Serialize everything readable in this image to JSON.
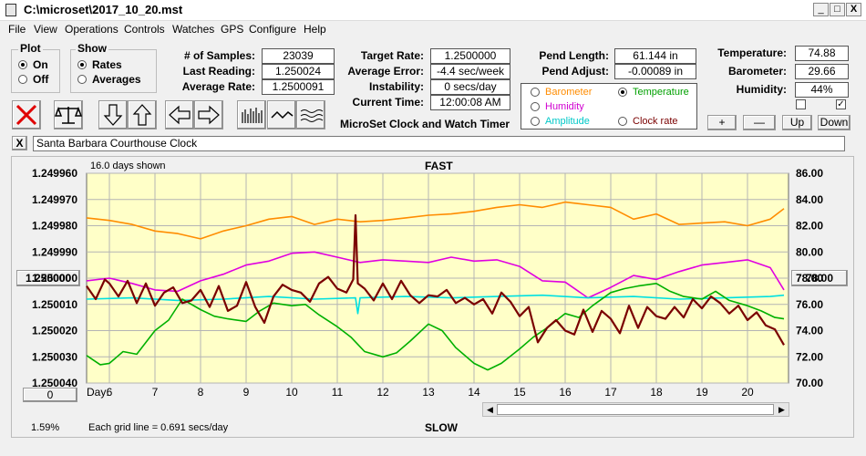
{
  "window": {
    "title": "C:\\microset\\2017_10_20.mst",
    "min_btn": "_",
    "max_btn": "□",
    "close_btn": "X"
  },
  "menu": [
    "File",
    "View",
    "Operations",
    "Controls",
    "Watches",
    "GPS",
    "Configure",
    "Help"
  ],
  "plot_group": {
    "title": "Plot",
    "options": [
      "On",
      "Off"
    ],
    "selected": "On"
  },
  "show_group": {
    "title": "Show",
    "options": [
      "Rates",
      "Averages"
    ],
    "selected": "Rates"
  },
  "stats": {
    "samples_label": "# of Samples:",
    "samples": "23039",
    "last_reading_label": "Last Reading:",
    "last_reading": "1.250024",
    "average_rate_label": "Average Rate:",
    "average_rate": "1.2500091",
    "target_rate_label": "Target Rate:",
    "target_rate": "1.2500000",
    "average_error_label": "Average Error:",
    "average_error": "-4.4 sec/week",
    "instability_label": "Instability:",
    "instability": "0 secs/day",
    "current_time_label": "Current Time:",
    "current_time": "12:00:08 AM",
    "pend_length_label": "Pend Length:",
    "pend_length": "61.144 in",
    "pend_adjust_label": "Pend Adjust:",
    "pend_adjust": "-0.00089 in",
    "temperature_label": "Temperature:",
    "temperature": "74.88",
    "barometer_label": "Barometer:",
    "barometer": "29.66",
    "humidity_label": "Humidity:",
    "humidity": "44%"
  },
  "app_caption": "MicroSet Clock and Watch Timer",
  "sensor_options": {
    "barometer": "Barometer",
    "temperature": "Temperature",
    "humidity": "Humidity",
    "amplitude": "Amplitude",
    "clock_rate": "Clock rate",
    "selected": "Temperature"
  },
  "scale_buttons": {
    "plus": "+",
    "minus": "—",
    "up": "Up",
    "down": "Down"
  },
  "checkboxes": {
    "left_checked": false,
    "right_checked": true
  },
  "clock_name": {
    "close": "X",
    "value": "Santa Barbara Courthouse Clock"
  },
  "chart": {
    "days_shown": "16.0 days shown",
    "top_label": "FAST",
    "bottom_label": "SLOW",
    "grid_note": "Each grid line = 0.691 secs/day",
    "left_center_btn": "1.250000",
    "right_center_btn": "78.00",
    "left_bottom_btn": "0",
    "percent": "1.59%",
    "day_label": "Day:"
  },
  "colors": {
    "barometer": "#ff8c00",
    "humidity": "#e000e0",
    "amplitude": "#00e0e0",
    "temperature": "#00b000",
    "clock_rate": "#7a0000",
    "plot_bg": "#ffffc8",
    "grid": "#b4b4b4"
  },
  "chart_data": {
    "type": "line",
    "x_label": "Day",
    "x_ticks": [
      6,
      7,
      8,
      9,
      10,
      11,
      12,
      13,
      14,
      15,
      16,
      17,
      18,
      19,
      20
    ],
    "xlim": [
      5.5,
      20.9
    ],
    "y_left_ticks": [
      "1.249960",
      "1.249970",
      "1.249980",
      "1.249990",
      "1.250000",
      "1.250010",
      "1.250020",
      "1.250030",
      "1.250040"
    ],
    "y_left_lim": [
      1.24996,
      1.25004
    ],
    "y_left_inverted": true,
    "y_right_ticks": [
      "86.00",
      "84.00",
      "82.00",
      "80.00",
      "78.00",
      "76.00",
      "74.00",
      "72.00",
      "70.00"
    ],
    "y_right_lim": [
      70,
      86
    ],
    "grid": true,
    "series": [
      {
        "name": "Barometer",
        "color": "#ff8c00",
        "x": [
          5.5,
          6.0,
          6.5,
          7.0,
          7.5,
          8.0,
          8.5,
          9.0,
          9.5,
          10.0,
          10.5,
          11.0,
          11.5,
          12.0,
          12.5,
          13.0,
          13.5,
          14.0,
          14.5,
          15.0,
          15.5,
          16.0,
          16.5,
          17.0,
          17.5,
          18.0,
          18.5,
          19.0,
          19.5,
          20.0,
          20.5,
          20.8
        ],
        "y": [
          82.6,
          82.4,
          82.1,
          81.6,
          81.4,
          81.0,
          81.6,
          82.0,
          82.5,
          82.7,
          82.1,
          82.5,
          82.3,
          82.4,
          82.6,
          82.8,
          82.9,
          83.1,
          83.4,
          83.6,
          83.4,
          83.8,
          83.6,
          83.4,
          82.5,
          82.9,
          82.1,
          82.2,
          82.3,
          82.0,
          82.5,
          83.3
        ]
      },
      {
        "name": "Humidity",
        "color": "#e000e0",
        "x": [
          5.5,
          6.0,
          6.5,
          7.0,
          7.5,
          8.0,
          8.5,
          9.0,
          9.5,
          10.0,
          10.5,
          11.0,
          11.5,
          12.0,
          12.5,
          13.0,
          13.5,
          14.0,
          14.5,
          15.0,
          15.5,
          16.0,
          16.5,
          17.0,
          17.5,
          18.0,
          18.5,
          19.0,
          19.5,
          20.0,
          20.5,
          20.8
        ],
        "y": [
          77.8,
          78.0,
          77.6,
          77.1,
          77.0,
          77.8,
          78.3,
          79.0,
          79.3,
          79.9,
          80.0,
          79.6,
          79.2,
          79.4,
          79.3,
          79.2,
          79.6,
          79.3,
          79.4,
          78.9,
          77.8,
          77.7,
          76.5,
          77.3,
          78.2,
          77.9,
          78.5,
          79.0,
          79.2,
          79.4,
          78.8,
          77.1
        ]
      },
      {
        "name": "Amplitude",
        "color": "#00e0e0",
        "x": [
          5.5,
          6.5,
          7.5,
          8.5,
          9.5,
          10.5,
          11.4,
          11.45,
          11.5,
          12.5,
          13.5,
          14.5,
          15.5,
          16.5,
          17.5,
          18.5,
          19.5,
          20.5,
          20.8
        ],
        "y": [
          76.4,
          76.5,
          76.3,
          76.4,
          76.6,
          76.4,
          76.5,
          75.3,
          76.5,
          76.6,
          76.5,
          76.6,
          76.7,
          76.5,
          76.6,
          76.4,
          76.5,
          76.6,
          76.7
        ]
      },
      {
        "name": "Temperature",
        "color": "#00b000",
        "x": [
          5.5,
          5.8,
          6.0,
          6.3,
          6.6,
          7.0,
          7.3,
          7.6,
          8.0,
          8.3,
          8.6,
          9.0,
          9.3,
          9.6,
          10.0,
          10.3,
          10.6,
          11.0,
          11.3,
          11.6,
          12.0,
          12.3,
          12.6,
          13.0,
          13.3,
          13.6,
          14.0,
          14.3,
          14.6,
          15.0,
          15.3,
          15.6,
          16.0,
          16.3,
          16.6,
          17.0,
          17.3,
          17.6,
          18.0,
          18.3,
          18.6,
          19.0,
          19.3,
          19.6,
          20.0,
          20.3,
          20.6,
          20.8
        ],
        "y": [
          72.1,
          71.4,
          71.5,
          72.4,
          72.2,
          74.0,
          74.8,
          76.4,
          75.6,
          75.1,
          74.9,
          74.7,
          75.5,
          76.1,
          75.9,
          76.0,
          75.2,
          74.3,
          73.5,
          72.4,
          72.0,
          72.3,
          73.2,
          74.5,
          74.0,
          72.7,
          71.5,
          71.0,
          71.5,
          72.6,
          73.5,
          74.2,
          75.3,
          75.0,
          75.9,
          76.9,
          77.2,
          77.4,
          77.6,
          77.0,
          76.6,
          76.4,
          77.0,
          76.3,
          75.9,
          75.5,
          75.0,
          74.9
        ]
      },
      {
        "name": "Clock rate",
        "color": "#7a0000",
        "x": [
          5.5,
          5.7,
          5.9,
          6.0,
          6.2,
          6.4,
          6.6,
          6.8,
          7.0,
          7.2,
          7.4,
          7.6,
          7.8,
          8.0,
          8.2,
          8.4,
          8.6,
          8.8,
          9.0,
          9.2,
          9.4,
          9.6,
          9.8,
          10.0,
          10.2,
          10.4,
          10.6,
          10.8,
          11.0,
          11.2,
          11.35,
          11.4,
          11.45,
          11.6,
          11.8,
          12.0,
          12.2,
          12.4,
          12.6,
          12.8,
          13.0,
          13.2,
          13.4,
          13.6,
          13.8,
          14.0,
          14.2,
          14.4,
          14.6,
          14.8,
          15.0,
          15.2,
          15.4,
          15.6,
          15.8,
          16.0,
          16.2,
          16.4,
          16.6,
          16.8,
          17.0,
          17.2,
          17.4,
          17.6,
          17.8,
          18.0,
          18.2,
          18.4,
          18.6,
          18.8,
          19.0,
          19.2,
          19.4,
          19.6,
          19.8,
          20.0,
          20.2,
          20.4,
          20.6,
          20.8
        ],
        "y": [
          77.4,
          76.4,
          77.9,
          77.6,
          76.6,
          77.8,
          76.1,
          77.6,
          75.9,
          76.9,
          77.3,
          76.1,
          76.3,
          77.1,
          75.8,
          77.4,
          75.5,
          75.9,
          77.7,
          75.8,
          74.6,
          76.6,
          77.5,
          77.1,
          76.9,
          76.2,
          77.6,
          78.1,
          77.2,
          76.9,
          77.9,
          82.8,
          77.6,
          77.2,
          76.3,
          77.6,
          76.4,
          77.8,
          76.7,
          76.1,
          76.7,
          76.6,
          77.1,
          76.1,
          76.5,
          76.0,
          76.4,
          75.3,
          76.9,
          76.2,
          75.1,
          75.8,
          73.1,
          74.2,
          74.8,
          74.0,
          73.7,
          75.6,
          73.9,
          75.5,
          74.9,
          73.8,
          75.9,
          74.2,
          75.8,
          75.1,
          74.9,
          75.8,
          75.0,
          76.4,
          75.7,
          76.6,
          76.1,
          75.3,
          75.9,
          74.8,
          75.4,
          74.4,
          74.1,
          72.9
        ]
      }
    ]
  }
}
